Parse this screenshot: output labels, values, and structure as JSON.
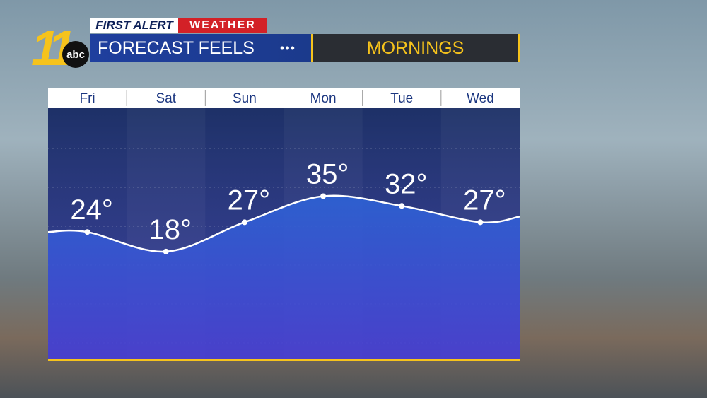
{
  "header": {
    "logo_number": "11",
    "logo_network": "abc",
    "brand_first": "FIRST ALERT",
    "brand_second": "WEATHER",
    "title": "FORECAST FEELS",
    "subtitle": "MORNINGS"
  },
  "chart_data": {
    "type": "line",
    "categories": [
      "Fri",
      "Sat",
      "Sun",
      "Mon",
      "Tue",
      "Wed"
    ],
    "values": [
      24,
      18,
      27,
      35,
      32,
      27
    ],
    "value_labels": [
      "24°",
      "18°",
      "27°",
      "35°",
      "32°",
      "27°"
    ],
    "ylim": [
      -15,
      62
    ],
    "color": "#ffffff"
  }
}
